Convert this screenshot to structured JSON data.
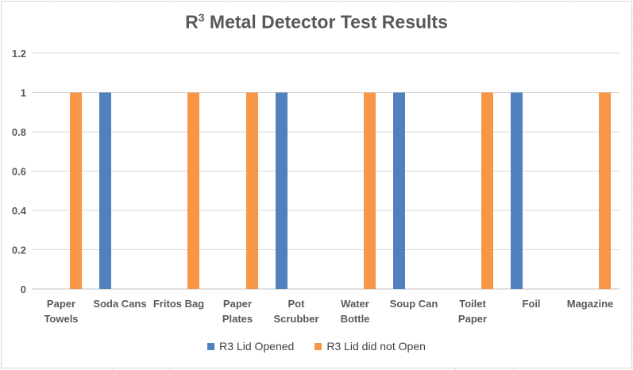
{
  "chart_data": {
    "type": "bar",
    "title_main": "R",
    "title_sup": "3",
    "title_rest": " Metal Detector Test Results",
    "categories": [
      [
        "Paper",
        "Towels"
      ],
      [
        "Soda Cans"
      ],
      [
        "Fritos Bag"
      ],
      [
        "Paper",
        "Plates"
      ],
      [
        "Pot",
        "Scrubber"
      ],
      [
        "Water",
        "Bottle"
      ],
      [
        "Soup Can"
      ],
      [
        "Toilet",
        "Paper"
      ],
      [
        "Foil"
      ],
      [
        "Magazine"
      ]
    ],
    "series": [
      {
        "name": "R3 Lid Opened",
        "color": "#4f81bd",
        "values": [
          0,
          1,
          0,
          0,
          1,
          0,
          1,
          0,
          1,
          0
        ]
      },
      {
        "name": "R3 Lid did not Open",
        "color": "#f79646",
        "values": [
          1,
          0,
          1,
          1,
          0,
          1,
          0,
          1,
          0,
          1
        ]
      }
    ],
    "y_ticks": [
      "0",
      "0.2",
      "0.4",
      "0.6",
      "0.8",
      "1",
      "1.2"
    ],
    "ylim": [
      0,
      1.2
    ],
    "grid": true,
    "legend_position": "bottom"
  }
}
